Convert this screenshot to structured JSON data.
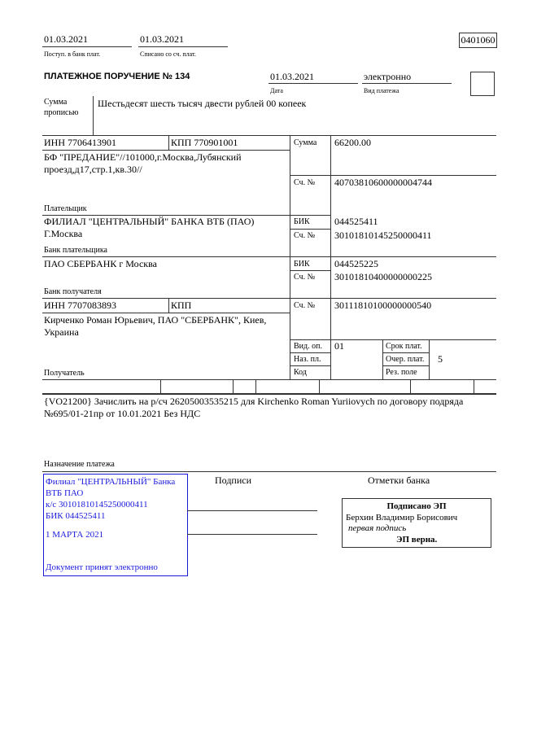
{
  "header": {
    "received_date": "01.03.2021",
    "received_label": "Поступ. в банк плат.",
    "debited_date": "01.03.2021",
    "debited_label": "Списано со сч. плат.",
    "form_code": "0401060",
    "title": "ПЛАТЕЖНОЕ ПОРУЧЕНИЕ № 134",
    "date": "01.03.2021",
    "date_label": "Дата",
    "payment_type": "электронно",
    "payment_type_label": "Вид платежа"
  },
  "amount_words": {
    "label_1": "Сумма",
    "label_2": "прописью",
    "value": "Шестьдесят шесть тысяч двести рублей 00 копеек"
  },
  "payer": {
    "inn": "ИНН 7706413901",
    "kpp": "КПП 770901001",
    "name_1": "БФ \"ПРЕДАНИЕ\"//101000,г.Москва,Лубянский",
    "name_2": "проезд,д17,стр.1,кв.30//",
    "label": "Плательщик",
    "amount_label": "Сумма",
    "amount": "66200.00",
    "account_label": "Сч. №",
    "account": "40703810600000004744"
  },
  "payer_bank": {
    "name_1": "ФИЛИАЛ \"ЦЕНТРАЛЬНЫЙ\" БАНКА ВТБ (ПАО)",
    "name_2": "Г.Москва",
    "label": "Банк плательщика",
    "bik_label": "БИК",
    "bik": "044525411",
    "account_label": "Сч. №",
    "account": "30101810145250000411"
  },
  "payee_bank": {
    "name": "ПАО СБЕРБАНК г Москва",
    "label": "Банк получателя",
    "bik_label": "БИК",
    "bik": "044525225",
    "account_label": "Сч. №",
    "account": "30101810400000000225"
  },
  "payee": {
    "inn": "ИНН 7707083893",
    "kpp": "КПП",
    "name_1": "Кирченко Роман Юрьевич, ПАО \"СБЕРБАНК\", Киев,",
    "name_2": "Украина",
    "label": "Получатель",
    "account_label": "Сч. №",
    "account": "30111810100000000540"
  },
  "details": {
    "op_type_label": "Вид. оп.",
    "op_type": "01",
    "purpose_code_label": "Наз. пл.",
    "code_label": "Код",
    "due_label": "Срок плат.",
    "priority_label": "Очер. плат.",
    "priority": "5",
    "reserve_label": "Рез. поле"
  },
  "purpose": {
    "line_1": "{VO21200} Зачислить на р/сч 26205003535215 для Kirchenko Roman Yuriiovych по договору подряда",
    "line_2": "№695/01-21пр от 10.01.2021 Без НДС",
    "label": "Назначение платежа"
  },
  "stamp": {
    "line_1": "Филиал \"ЦЕНТРАЛЬНЫЙ\" Банка",
    "line_2": "ВТБ ПАО",
    "line_3": "к/с 30101810145250000411",
    "line_4": "БИК 044525411",
    "date": "1 МАРТА 2021",
    "footer": "Документ принят электронно",
    "color": "#1a1adc"
  },
  "signatures": {
    "label": "Подписи",
    "bank_marks_label": "Отметки банка"
  },
  "e_signature": {
    "title": "Подписано ЭП",
    "signer": "Берхин Владимир Борисович",
    "role": "первая подпись",
    "status": "ЭП верна."
  }
}
